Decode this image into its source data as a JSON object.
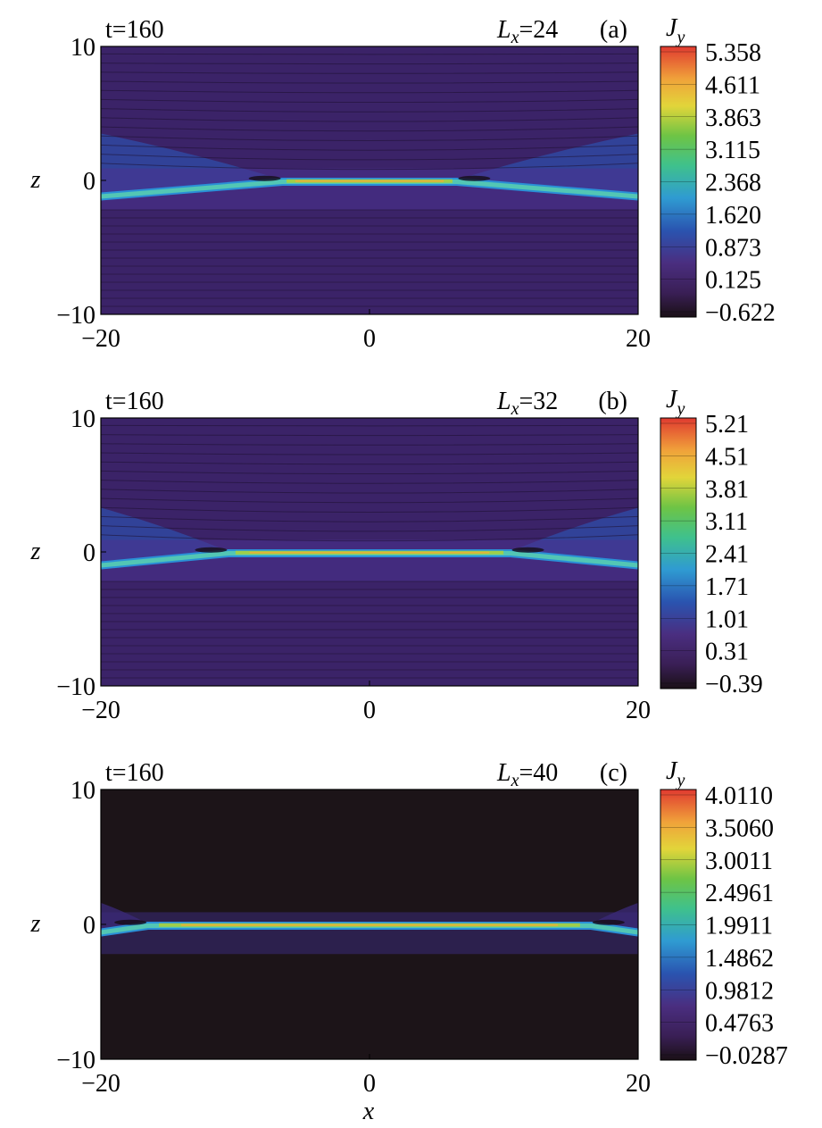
{
  "figure": {
    "xlabel": "x",
    "ylabel": "z",
    "colorbar_label_main": "J",
    "colorbar_label_sub": "y",
    "x_ticks": [
      "−20",
      "0",
      "20"
    ],
    "z_ticks": [
      "10",
      "0",
      "−10"
    ]
  },
  "chart_data": [
    {
      "type": "heatmap",
      "panel": "(a)",
      "time_label": "t=160",
      "param_label": "Lx=24",
      "param_name": "L",
      "param_sub": "x",
      "param_value": "=24",
      "x_range": [
        -20,
        20
      ],
      "z_range": [
        -10,
        10
      ],
      "xlabel": "",
      "ylabel": "z",
      "colorbar": {
        "label": "Jy",
        "ticks": [
          "5.358",
          "4.611",
          "3.863",
          "3.115",
          "2.368",
          "1.620",
          "0.873",
          "0.125",
          "−0.622"
        ],
        "range": [
          -0.622,
          5.358
        ]
      },
      "current_sheet": {
        "flat_half_width": 6.5,
        "edge_offset_z": -1.1,
        "peak": 5.358
      },
      "background_level": "low",
      "fan_height_z": 3.5
    },
    {
      "type": "heatmap",
      "panel": "(b)",
      "time_label": "t=160",
      "param_label": "Lx=32",
      "param_name": "L",
      "param_sub": "x",
      "param_value": "=32",
      "x_range": [
        -20,
        20
      ],
      "z_range": [
        -10,
        10
      ],
      "xlabel": "",
      "ylabel": "z",
      "colorbar": {
        "label": "Jy",
        "ticks": [
          "5.21",
          "4.51",
          "3.81",
          "3.11",
          "2.41",
          "1.71",
          "1.01",
          "0.31",
          "−0.39"
        ],
        "range": [
          -0.39,
          5.21
        ]
      },
      "current_sheet": {
        "flat_half_width": 10.5,
        "edge_offset_z": -0.9,
        "peak": 5.21
      },
      "background_level": "low",
      "fan_height_z": 3.3
    },
    {
      "type": "heatmap",
      "panel": "(c)",
      "time_label": "t=160",
      "param_label": "Lx=40",
      "param_name": "L",
      "param_sub": "x",
      "param_value": "=40",
      "x_range": [
        -20,
        20
      ],
      "z_range": [
        -10,
        10
      ],
      "xlabel": "x",
      "ylabel": "z",
      "colorbar": {
        "label": "Jy",
        "ticks": [
          "4.0110",
          "3.5060",
          "3.0011",
          "2.4961",
          "1.9911",
          "1.4862",
          "0.9812",
          "0.4763",
          "−0.0287"
        ],
        "range": [
          -0.0287,
          4.011
        ]
      },
      "current_sheet": {
        "flat_half_width": 16.5,
        "edge_offset_z": -0.5,
        "peak": 4.011
      },
      "background_level": "zero",
      "fan_height_z": 1.6
    }
  ]
}
